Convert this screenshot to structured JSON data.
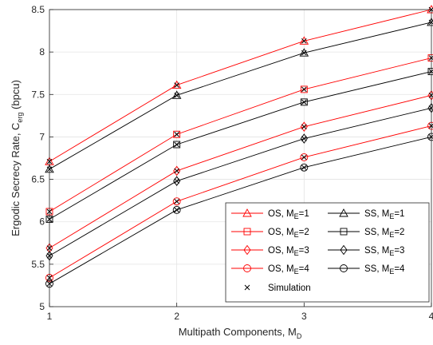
{
  "chart_data": {
    "type": "line",
    "x": [
      1,
      2,
      3,
      4
    ],
    "xlim": [
      1,
      4
    ],
    "ylim": [
      5,
      8.5
    ],
    "xticks": [
      "1",
      "2",
      "3",
      "4"
    ],
    "yticks": [
      "5",
      "5.5",
      "6",
      "6.5",
      "7",
      "7.5",
      "8",
      "8.5"
    ],
    "xlabel": "Multipath Components, M",
    "xlabel_sub": "D",
    "ylabel": "Ergodic Secrecy Rate, C",
    "ylabel_sub": "erg",
    "ylabel_suffix": " (bpcu)",
    "grid": true,
    "legend_position": "bottom-right",
    "series": [
      {
        "name": "OS, M",
        "sub": "E",
        "suffix": "=1",
        "color": "#ff0000",
        "marker": "triangle",
        "values": [
          6.71,
          7.61,
          8.13,
          8.5
        ]
      },
      {
        "name": "OS, M",
        "sub": "E",
        "suffix": "=2",
        "color": "#ff0000",
        "marker": "square",
        "values": [
          6.12,
          7.03,
          7.56,
          7.93
        ]
      },
      {
        "name": "OS, M",
        "sub": "E",
        "suffix": "=3",
        "color": "#ff0000",
        "marker": "diamond",
        "values": [
          5.69,
          6.6,
          7.12,
          7.49
        ]
      },
      {
        "name": "OS, M",
        "sub": "E",
        "suffix": "=4",
        "color": "#ff0000",
        "marker": "circle",
        "values": [
          5.34,
          6.24,
          6.76,
          7.13
        ]
      },
      {
        "name": "SS, M",
        "sub": "E",
        "suffix": "=1",
        "color": "#000000",
        "marker": "triangle",
        "values": [
          6.62,
          7.49,
          7.99,
          8.35
        ]
      },
      {
        "name": "SS, M",
        "sub": "E",
        "suffix": "=2",
        "color": "#000000",
        "marker": "square",
        "values": [
          6.03,
          6.91,
          7.41,
          7.77
        ]
      },
      {
        "name": "SS, M",
        "sub": "E",
        "suffix": "=3",
        "color": "#000000",
        "marker": "diamond",
        "values": [
          5.6,
          6.48,
          6.98,
          7.34
        ]
      },
      {
        "name": "SS, M",
        "sub": "E",
        "suffix": "=4",
        "color": "#000000",
        "marker": "circle",
        "values": [
          5.27,
          6.14,
          6.64,
          7.0
        ]
      }
    ],
    "simulation": {
      "name": "Simulation",
      "marker": "x",
      "color": "#000000"
    }
  }
}
